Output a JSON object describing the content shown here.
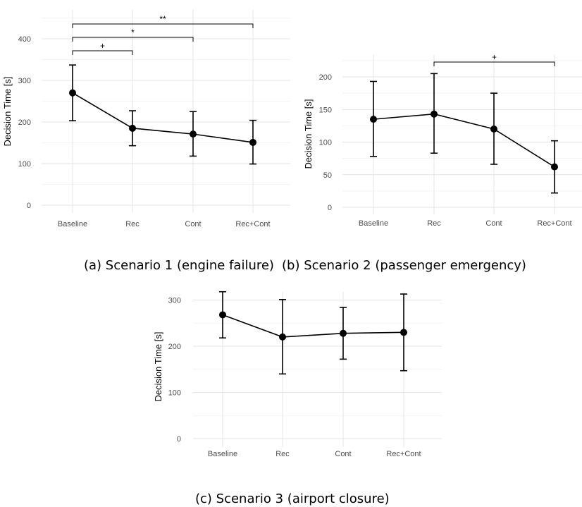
{
  "chart_data": [
    {
      "type": "line",
      "caption": "(a) Scenario 1 (engine failure)",
      "ylabel": "Decision Time [s]",
      "categories": [
        "Baseline",
        "Rec",
        "Cont",
        "Rec+Cont"
      ],
      "series": [
        {
          "values": [
            270,
            185,
            171,
            151
          ],
          "err_low": [
            203,
            143,
            118,
            99
          ],
          "err_high": [
            337,
            227,
            225,
            204
          ]
        }
      ],
      "ylim": [
        -20,
        455
      ],
      "yticks": [
        0,
        100,
        200,
        300,
        400
      ],
      "grid": true,
      "significance": [
        {
          "from": "Baseline",
          "to": "Rec",
          "label": "+"
        },
        {
          "from": "Baseline",
          "to": "Cont",
          "label": "*"
        },
        {
          "from": "Baseline",
          "to": "Rec+Cont",
          "label": "**"
        }
      ]
    },
    {
      "type": "line",
      "caption": "(b) Scenario 2 (passenger emergency)",
      "ylabel": "Decision Time [s]",
      "categories": [
        "Baseline",
        "Rec",
        "Cont",
        "Rec+Cont"
      ],
      "series": [
        {
          "values": [
            135,
            143,
            120,
            62
          ],
          "err_low": [
            78,
            83,
            66,
            22
          ],
          "err_high": [
            193,
            205,
            175,
            102
          ]
        }
      ],
      "ylim": [
        -10,
        225
      ],
      "yticks": [
        0,
        50,
        100,
        150,
        200
      ],
      "grid": true,
      "significance": [
        {
          "from": "Rec",
          "to": "Rec+Cont",
          "label": "+"
        }
      ]
    },
    {
      "type": "line",
      "caption": "(c) Scenario 3 (airport closure)",
      "ylabel": "Decision Time [s]",
      "categories": [
        "Baseline",
        "Rec",
        "Cont",
        "Rec+Cont"
      ],
      "series": [
        {
          "values": [
            268,
            220,
            228,
            230
          ],
          "err_low": [
            218,
            140,
            172,
            147
          ],
          "err_high": [
            318,
            301,
            284,
            313
          ]
        }
      ],
      "ylim": [
        -15,
        340
      ],
      "yticks": [
        0,
        100,
        200,
        300
      ],
      "grid": true,
      "significance": []
    }
  ]
}
